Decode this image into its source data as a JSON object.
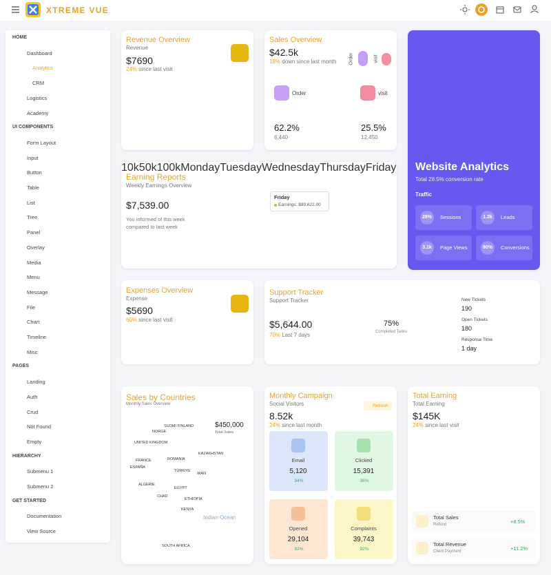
{
  "header": {
    "brand": "XTREME VUE"
  },
  "sidebar": [
    {
      "title": "HOME",
      "items": [
        "Dashboard",
        "Analytics",
        "CRM",
        "Logistics",
        "Academy"
      ]
    },
    {
      "title": "UI COMPONENTS",
      "items": [
        "Form Layout",
        "Input",
        "Button",
        "Table",
        "List",
        "Tree",
        "Panel",
        "Overlay",
        "Media",
        "Menu",
        "Message",
        "File",
        "Chart",
        "Timeline",
        "Misc"
      ]
    },
    {
      "title": "PAGES",
      "items": [
        "Landing",
        "Auth",
        "Crud",
        "Not Found",
        "Empty"
      ]
    },
    {
      "title": "HIERARCHY",
      "items": [
        "Submenu 1",
        "Submenu 2"
      ]
    },
    {
      "title": "GET STARTED",
      "items": [
        "Documentation",
        "View Source"
      ]
    }
  ],
  "revenue": {
    "title": "Revenue Overview",
    "subtitle": "Revenue",
    "value": "$7690",
    "change": "24%",
    "change_text": "since last visit",
    "chart_data": {
      "type": "area",
      "values": [
        40,
        85,
        95,
        93,
        80,
        55,
        45,
        60,
        88,
        94,
        85,
        95
      ],
      "color": "#e6b711"
    }
  },
  "sales": {
    "title": "Sales Overview",
    "value": "$42.5k",
    "change": "18%",
    "change_text": "down since last month",
    "order": "Order",
    "visit": "visit",
    "order_pct": "62.2%",
    "order_count": "6,440",
    "visit_pct": "25.5%",
    "visit_count": "12,450"
  },
  "analytics": {
    "title": "Website Analytics",
    "subtitle": "Total 28.5% conversion rate",
    "section": "Traffic",
    "tiles": [
      {
        "value": "28%",
        "label": "Sessions"
      },
      {
        "value": "1.2k",
        "label": "Leads"
      },
      {
        "value": "3.1k",
        "label": "Page Views"
      },
      {
        "value": "90%",
        "label": "Conversions"
      }
    ]
  },
  "earning": {
    "title": "Earning Reports",
    "subtitle": "Weekly Earnings Overview",
    "value": "$7,539.00",
    "note": "You informed of this week compared to last week",
    "chart_data": {
      "type": "line",
      "categories": [
        "Monday",
        "Tuesday",
        "Wednesday",
        "Thursday",
        "Friday",
        "Saturday",
        "Sunday"
      ],
      "values": [
        75000,
        77000,
        72000,
        58000,
        99622,
        53000,
        66000
      ],
      "color": "#e8b321",
      "ylim": [
        10000,
        100000
      ],
      "yticks": [
        {
          "value": 10000,
          "label": "10k"
        },
        {
          "value": 50000,
          "label": "50k"
        },
        {
          "value": 100000,
          "label": "100k"
        }
      ],
      "tooltip": {
        "title": "Friday",
        "text": "Earnings: $99,622.00"
      }
    }
  },
  "expenses": {
    "title": "Expenses Overview",
    "subtitle": "Expense",
    "value": "$5690",
    "change": "60%",
    "change_text": "since last visit",
    "chart_data": {
      "type": "bar",
      "values": [
        95,
        95,
        62,
        80,
        48,
        55,
        80,
        100,
        95,
        95,
        35,
        90
      ],
      "colors": [
        "#ec4e7f",
        "#40a9e0",
        "#fcd15e",
        "#47c6b4",
        "#8b5cf6",
        "#f59d40",
        "#47c6b4",
        "#ec4e7f",
        "#40a9e0",
        "#fcd15e",
        "#47c6b4",
        "#8b5cf6"
      ]
    }
  },
  "support": {
    "title": "Support Tracker",
    "subtitle": "Support Tracker",
    "value": "$5,644.00",
    "change": "70%",
    "change_text": "Last 7 days",
    "donut": {
      "value": 75,
      "value_label": "75%",
      "caption": "Completed Tasks"
    },
    "stats": [
      {
        "label": "New Tickets",
        "value": "190"
      },
      {
        "label": "Open Tickets",
        "value": "180"
      },
      {
        "label": "Response Time",
        "value": "1 day"
      }
    ]
  },
  "countries": {
    "title": "Sales by Countries",
    "subtitle": "Monthly Sales Overview",
    "total": "$450,000",
    "total_label": "Total Sales",
    "map_labels": [
      "SUOMI FINLAND",
      "NORGE",
      "UNITED KINGDOM",
      "FRANCE",
      "ESPAÑA",
      "ROMANIA",
      "TÜRKIYE",
      "KAZAKHSTAN",
      "IRAN",
      "ALGERIE",
      "EGYPT",
      "CHAD",
      "ETHIOPIA",
      "KENYA",
      "SOUTH AFRICA",
      "Indian Ocean"
    ]
  },
  "campaign": {
    "title": "Monthly Campaign",
    "subtitle": "Social Visitors",
    "action": "Refresh",
    "value": "8.52k",
    "change": "24%",
    "change_text": "since last month",
    "tiles": [
      {
        "label": "Email",
        "value": "5,120",
        "change": "94%"
      },
      {
        "label": "Clicked",
        "value": "15,391",
        "change": "36%"
      },
      {
        "label": "Opened",
        "value": "29,104",
        "change": "92%"
      },
      {
        "label": "Complaints",
        "value": "39,743",
        "change": "92%"
      }
    ]
  },
  "total": {
    "title": "Total Earning",
    "subtitle": "Total Earning",
    "value": "$145K",
    "change": "24%",
    "change_text": "since last visit",
    "chart_data": {
      "type": "bar",
      "values": [
        57,
        89,
        46,
        61,
        72,
        45,
        100,
        91
      ],
      "colors": [
        "#fcd15e",
        "#fcd15e",
        "#fcd15e",
        "#40a9e0",
        "#f59d40",
        "#ec4e7f",
        "#40a9e0",
        "#47c6b4"
      ]
    },
    "rows": [
      {
        "label": "Total Sales",
        "sub": "Refund",
        "change": "+8.5%"
      },
      {
        "label": "Total Revenue",
        "sub": "Client Payment",
        "change": "+11.2%"
      }
    ]
  }
}
